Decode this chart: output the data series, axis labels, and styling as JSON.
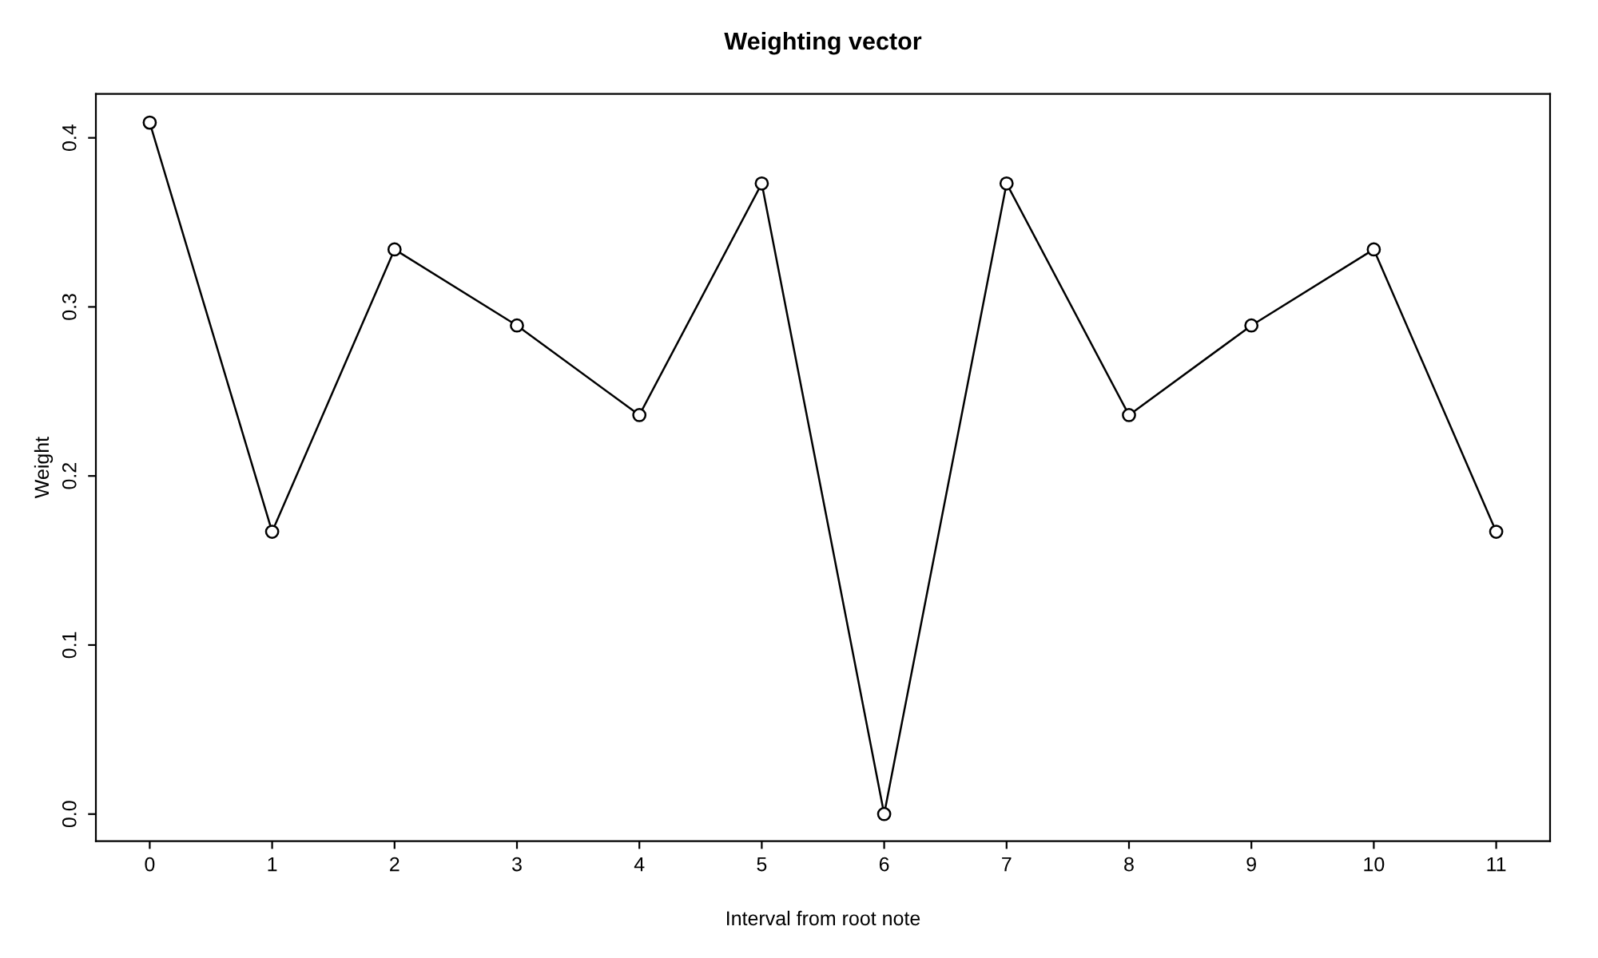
{
  "chart_data": {
    "type": "line",
    "title": "Weighting vector",
    "xlabel": "Interval from root note",
    "ylabel": "Weight",
    "x": [
      0,
      1,
      2,
      3,
      4,
      5,
      6,
      7,
      8,
      9,
      10,
      11
    ],
    "series": [
      {
        "color": "#000000",
        "values": [
          0.409,
          0.167,
          0.334,
          0.289,
          0.236,
          0.373,
          0.0,
          0.373,
          0.236,
          0.289,
          0.334,
          0.167
        ]
      }
    ],
    "xlim": [
      -0.44,
      11.44
    ],
    "xticks": [
      0,
      1,
      2,
      3,
      4,
      5,
      6,
      7,
      8,
      9,
      10,
      11
    ],
    "ylim": [
      -0.016,
      0.426
    ],
    "yticks": [
      {
        "value": 0,
        "label": "0.0"
      },
      0.1,
      0.2,
      0.3,
      0.4
    ],
    "marker": "circle",
    "line_style": "solid",
    "grid": false,
    "legend": false
  }
}
